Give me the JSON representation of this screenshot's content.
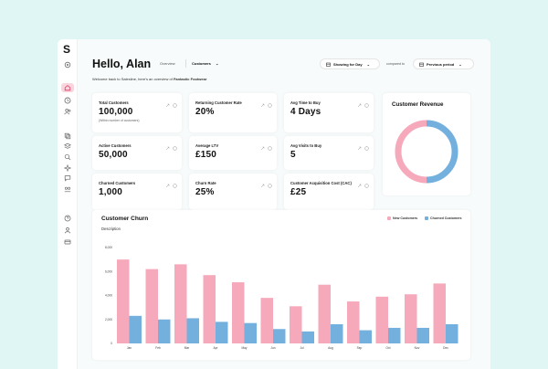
{
  "sidebar": {
    "logo": "S"
  },
  "header": {
    "greeting": "Hello, Alan",
    "welcome_prefix": "Welcome back to Salesline, here's an overview of ",
    "welcome_brand": "Fantastic Footwear",
    "tabs": [
      {
        "label": "Overview",
        "active": false
      },
      {
        "label": "Customers",
        "active": true
      }
    ],
    "showing_label": "Showing for Day",
    "compared_label": "compared to",
    "period_label": "Previous period"
  },
  "kpis": [
    {
      "label": "Total Customers",
      "value": "100,000",
      "sub": "(Within number of customers)"
    },
    {
      "label": "Returning Customer Rate",
      "value": "20%",
      "sub": ""
    },
    {
      "label": "Avg Time to Buy",
      "value": "4 Days",
      "sub": ""
    },
    {
      "label": "Active Customers",
      "value": "50,000",
      "sub": ""
    },
    {
      "label": "Average LTV",
      "value": "£150",
      "sub": ""
    },
    {
      "label": "Avg Visits to Buy",
      "value": "5",
      "sub": ""
    },
    {
      "label": "Churned Customers",
      "value": "1,000",
      "sub": ""
    },
    {
      "label": "Churn Rate",
      "value": "25%",
      "sub": ""
    },
    {
      "label": "Customer Acquisition Cost (CAC)",
      "value": "£25",
      "sub": ""
    }
  ],
  "colors": {
    "pink": "#f6a9bb",
    "blue": "#74b0de",
    "accent_bg": "#fbd5de"
  },
  "chart_data": [
    {
      "type": "pie",
      "title": "Customer Revenue",
      "donut": true,
      "slices": [
        {
          "value": 50,
          "color": "#f6a9bb"
        },
        {
          "value": 50,
          "color": "#74b0de"
        }
      ]
    },
    {
      "type": "bar",
      "title": "Customer Churn",
      "subtitle": "Description",
      "categories": [
        "Jan",
        "Feb",
        "Mar",
        "Apr",
        "May",
        "Jun",
        "Jul",
        "Aug",
        "Sep",
        "Oct",
        "Nov",
        "Dec"
      ],
      "series": [
        {
          "name": "New Customers",
          "color": "#f6a9bb",
          "values": [
            7000,
            6200,
            6600,
            5700,
            5100,
            3800,
            3100,
            4900,
            3500,
            3900,
            4100,
            5000
          ]
        },
        {
          "name": "Churned Customers",
          "color": "#74b0de",
          "values": [
            2300,
            2000,
            2100,
            1800,
            1700,
            1200,
            1000,
            1600,
            1100,
            1300,
            1300,
            1600
          ]
        }
      ],
      "yticks": [
        "0",
        "2,000",
        "4,000",
        "6,000",
        "8,000"
      ],
      "ylim": [
        0,
        8000
      ],
      "legend": "top-right",
      "grid": false
    }
  ]
}
